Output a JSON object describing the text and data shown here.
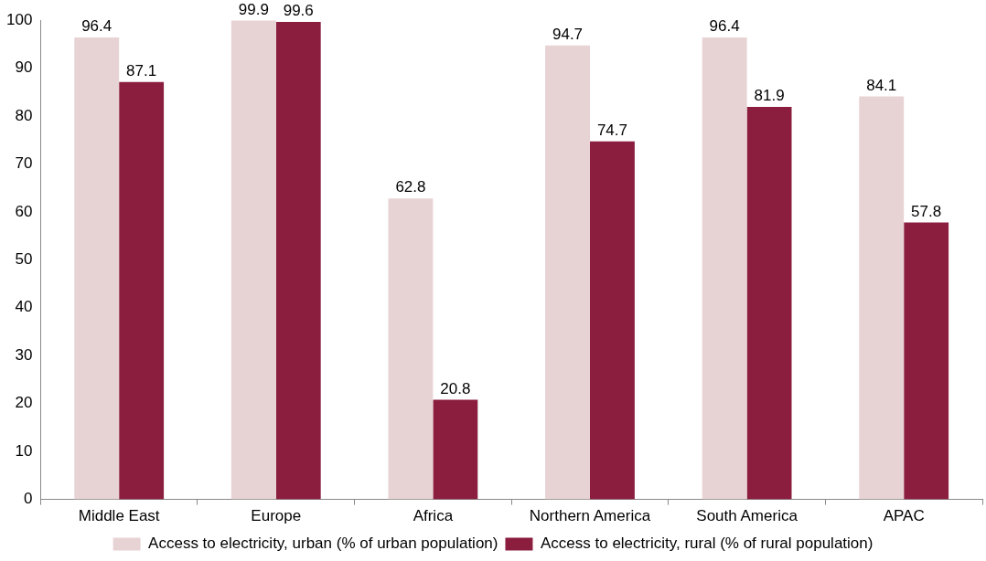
{
  "chart_data": {
    "type": "bar",
    "categories": [
      "Middle East",
      "Europe",
      "Africa",
      "Northern America",
      "South America",
      "APAC"
    ],
    "series": [
      {
        "name": "Access to electricity, urban (% of urban population)",
        "color": "#e8d3d4",
        "values": [
          96.4,
          99.9,
          62.8,
          94.7,
          96.4,
          84.1
        ]
      },
      {
        "name": "Access to electricity, rural (% of rural population)",
        "color": "#8b1e3f",
        "values": [
          87.1,
          99.6,
          20.8,
          74.7,
          81.9,
          57.8
        ]
      }
    ],
    "ylim": [
      0,
      100
    ],
    "yticks": [
      0,
      10,
      20,
      30,
      40,
      50,
      60,
      70,
      80,
      90,
      100
    ],
    "grid": false,
    "legend": "bottom",
    "data_labels": true
  }
}
